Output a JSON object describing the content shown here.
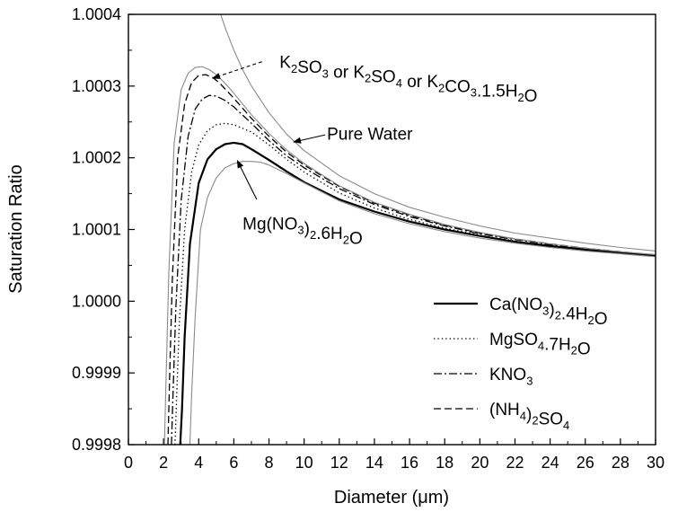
{
  "chart_data": {
    "type": "line",
    "title": "",
    "xlabel": "Diameter (μm)",
    "ylabel": "Saturation Ratio",
    "xlim": [
      0,
      30
    ],
    "ylim": [
      0.9998,
      1.0004
    ],
    "x_ticks": [
      0,
      2,
      4,
      6,
      8,
      10,
      12,
      14,
      16,
      18,
      20,
      22,
      24,
      26,
      28,
      30
    ],
    "x_tick_labels": [
      "0",
      "2",
      "4",
      "6",
      "8",
      "10",
      "12",
      "14",
      "16",
      "18",
      "20",
      "22",
      "24",
      "26",
      "28",
      "30"
    ],
    "y_ticks": [
      0.9998,
      0.9999,
      1.0,
      1.0001,
      1.0002,
      1.0003,
      1.0004
    ],
    "y_tick_labels": [
      "0.9998",
      "0.9999",
      "1.0000",
      "1.0001",
      "1.0002",
      "1.0003",
      "1.0004"
    ],
    "grid": false,
    "legend_position": "bottom-right",
    "series": [
      {
        "name": "Ca(NO3)2.4H2O",
        "legend": {
          "parts": [
            [
              "Ca(NO",
              "n"
            ],
            [
              "3",
              "sub"
            ],
            [
              ")",
              "n"
            ],
            [
              "2",
              "sub"
            ],
            [
              ".4H",
              "n"
            ],
            [
              "2",
              "sub"
            ],
            [
              "O",
              "n"
            ]
          ]
        },
        "style": "solid",
        "color": "#000000",
        "width": 2.2,
        "x": [
          2.95,
          3.05,
          3.2,
          3.5,
          4.0,
          4.5,
          5.0,
          5.5,
          6.0,
          6.5,
          7.0,
          8.0,
          9.0,
          10.0,
          12.0,
          14.0,
          16.0,
          18.0,
          20.0,
          22.0,
          24.0,
          26.0,
          28.0,
          30.0
        ],
        "y": [
          0.9998,
          0.99985,
          0.99995,
          1.00008,
          1.000165,
          1.000198,
          1.000212,
          1.000219,
          1.000221,
          1.000219,
          1.000212,
          1.000197,
          1.000181,
          1.000166,
          1.000142,
          1.000125,
          1.000111,
          1.0001,
          1.000091,
          1.000083,
          1.000077,
          1.000072,
          1.000067,
          1.000063
        ]
      },
      {
        "name": "MgSO4.7H2O",
        "legend": {
          "parts": [
            [
              "MgSO",
              "n"
            ],
            [
              "4",
              "sub"
            ],
            [
              ".7H",
              "n"
            ],
            [
              "2",
              "sub"
            ],
            [
              "O",
              "n"
            ]
          ]
        },
        "style": "dotted",
        "color": "#000000",
        "width": 1.3,
        "x": [
          2.65,
          2.75,
          2.9,
          3.2,
          3.6,
          4.0,
          4.5,
          5.0,
          5.5,
          6.0,
          7.0,
          8.0,
          9.0,
          10.0,
          12.0,
          14.0,
          16.0,
          18.0,
          20.0,
          22.0,
          24.0,
          26.0,
          28.0,
          30.0
        ],
        "y": [
          0.9998,
          0.99987,
          0.99997,
          1.0001,
          1.00018,
          1.000218,
          1.000238,
          1.000246,
          1.000248,
          1.000246,
          1.000236,
          1.000218,
          1.000198,
          1.00018,
          1.000151,
          1.00013,
          1.000114,
          1.000102,
          1.000092,
          1.000084,
          1.000077,
          1.000072,
          1.000067,
          1.000063
        ]
      },
      {
        "name": "KNO3",
        "legend": {
          "parts": [
            [
              "KNO",
              "n"
            ],
            [
              "3",
              "sub"
            ]
          ]
        },
        "style": "dashdot",
        "color": "#000000",
        "width": 1.3,
        "x": [
          2.45,
          2.55,
          2.7,
          3.0,
          3.4,
          3.8,
          4.2,
          4.6,
          5.0,
          5.5,
          6.0,
          7.0,
          8.0,
          9.0,
          10.0,
          12.0,
          14.0,
          16.0,
          18.0,
          20.0,
          22.0,
          24.0,
          26.0,
          28.0,
          30.0
        ],
        "y": [
          0.9998,
          0.99988,
          0.99999,
          1.00014,
          1.00023,
          1.000268,
          1.000282,
          1.000287,
          1.000286,
          1.00028,
          1.000271,
          1.000248,
          1.000224,
          1.000203,
          1.000186,
          1.000157,
          1.000135,
          1.000118,
          1.000105,
          1.000094,
          1.000086,
          1.000079,
          1.000073,
          1.000068,
          1.000064
        ]
      },
      {
        "name": "(NH4)2SO4",
        "legend": {
          "parts": [
            [
              "(NH",
              "n"
            ],
            [
              "4",
              "sub"
            ],
            [
              ")",
              "n"
            ],
            [
              "2",
              "sub"
            ],
            [
              "SO",
              "n"
            ],
            [
              "4",
              "sub"
            ]
          ]
        },
        "style": "dashed",
        "color": "#000000",
        "width": 1.3,
        "x": [
          2.25,
          2.35,
          2.5,
          2.8,
          3.2,
          3.6,
          4.0,
          4.4,
          4.8,
          5.2,
          6.0,
          7.0,
          8.0,
          9.0,
          10.0,
          12.0,
          14.0,
          16.0,
          18.0,
          20.0,
          22.0,
          24.0,
          26.0,
          28.0,
          30.0
        ],
        "y": [
          0.9998,
          0.9999,
          1.00003,
          1.0002,
          1.000275,
          1.000305,
          1.000315,
          1.000316,
          1.000312,
          1.000304,
          1.000283,
          1.000255,
          1.00023,
          1.000208,
          1.00019,
          1.00016,
          1.000137,
          1.00012,
          1.000106,
          1.000095,
          1.000087,
          1.00008,
          1.000074,
          1.000069,
          1.000064
        ]
      },
      {
        "name": "K2SO3 or K2SO4 or K2CO3.1.5H2O",
        "style": "solid",
        "color": "#8a8a8a",
        "width": 1.1,
        "x": [
          2.05,
          2.15,
          2.3,
          2.6,
          3.0,
          3.4,
          3.8,
          4.2,
          4.6,
          5.0,
          5.5,
          6.0,
          7.0,
          8.0,
          9.0,
          10.0,
          12.0,
          14.0,
          16.0,
          18.0,
          20.0,
          22.0,
          24.0,
          26.0,
          28.0,
          30.0
        ],
        "y": [
          0.9998,
          0.9999,
          1.00004,
          1.00022,
          1.000295,
          1.000318,
          1.000326,
          1.000327,
          1.000323,
          1.000316,
          1.000304,
          1.00029,
          1.00026,
          1.000234,
          1.000211,
          1.000192,
          1.000161,
          1.000138,
          1.000121,
          1.000107,
          1.000096,
          1.000087,
          1.00008,
          1.000074,
          1.000069,
          1.000065
        ]
      },
      {
        "name": "Pure Water",
        "style": "solid",
        "color": "#8a8a8a",
        "width": 1.1,
        "x": [
          5.25,
          5.5,
          6.0,
          6.5,
          7.0,
          8.0,
          9.0,
          10.0,
          12.0,
          14.0,
          16.0,
          18.0,
          20.0,
          22.0,
          24.0,
          26.0,
          28.0,
          30.0
        ],
        "y": [
          1.0004,
          1.000382,
          1.00035,
          1.000323,
          1.0003,
          1.000263,
          1.000233,
          1.00021,
          1.000175,
          1.00015,
          1.000131,
          1.000117,
          1.000105,
          1.000095,
          1.000088,
          1.000081,
          1.000075,
          1.00007
        ]
      },
      {
        "name": "Mg(NO3)2.6H2O",
        "style": "solid",
        "color": "#8a8a8a",
        "width": 1.1,
        "x": [
          3.5,
          3.6,
          3.8,
          4.1,
          4.5,
          5.0,
          5.5,
          6.0,
          6.5,
          7.0,
          7.5,
          8.0,
          9.0,
          10.0,
          12.0,
          14.0,
          16.0,
          18.0,
          20.0,
          22.0,
          24.0,
          26.0,
          28.0,
          30.0
        ],
        "y": [
          0.9998,
          0.99987,
          0.99998,
          1.0001,
          1.000145,
          1.000172,
          1.000186,
          1.000192,
          1.000195,
          1.000195,
          1.000194,
          1.00019,
          1.000178,
          1.000165,
          1.00014,
          1.000122,
          1.000108,
          1.000097,
          1.000088,
          1.000081,
          1.000075,
          1.00007,
          1.000066,
          1.000062
        ]
      }
    ],
    "annotations": [
      {
        "parts": [
          [
            "K",
            "n"
          ],
          [
            "2",
            "sub"
          ],
          [
            "SO",
            "n"
          ],
          [
            "3",
            "sub"
          ],
          [
            " or K",
            "n"
          ],
          [
            "2",
            "sub"
          ],
          [
            "SO",
            "n"
          ],
          [
            "4",
            "sub"
          ],
          [
            " or K",
            "n"
          ],
          [
            "2",
            "sub"
          ],
          [
            "CO",
            "n"
          ],
          [
            "3",
            "sub"
          ],
          [
            ".1.5H",
            "n"
          ],
          [
            "2",
            "sub"
          ],
          [
            "O",
            "n"
          ]
        ],
        "text_at": [
          8.6,
          1.000334
        ],
        "arrow_from": [
          7.6,
          1.000334
        ],
        "arrow_to": [
          4.8,
          1.000311
        ],
        "arrow_style": "dashed"
      },
      {
        "parts": [
          [
            "Pure Water",
            "n"
          ]
        ],
        "text_at": [
          11.3,
          1.000234
        ],
        "arrow_from": [
          11.2,
          1.000232
        ],
        "arrow_to": [
          9.4,
          1.000222
        ],
        "arrow_style": "solid"
      },
      {
        "parts": [
          [
            "Mg(NO",
            "n"
          ],
          [
            "3",
            "sub"
          ],
          [
            ")",
            "n"
          ],
          [
            "2",
            "sub"
          ],
          [
            ".6H",
            "n"
          ],
          [
            "2",
            "sub"
          ],
          [
            "O",
            "n"
          ]
        ],
        "text_at": [
          6.5,
          1.000109
        ],
        "arrow_from": [
          7.3,
          1.000142
        ],
        "arrow_to": [
          6.2,
          1.000196
        ],
        "arrow_style": "solid"
      }
    ]
  }
}
